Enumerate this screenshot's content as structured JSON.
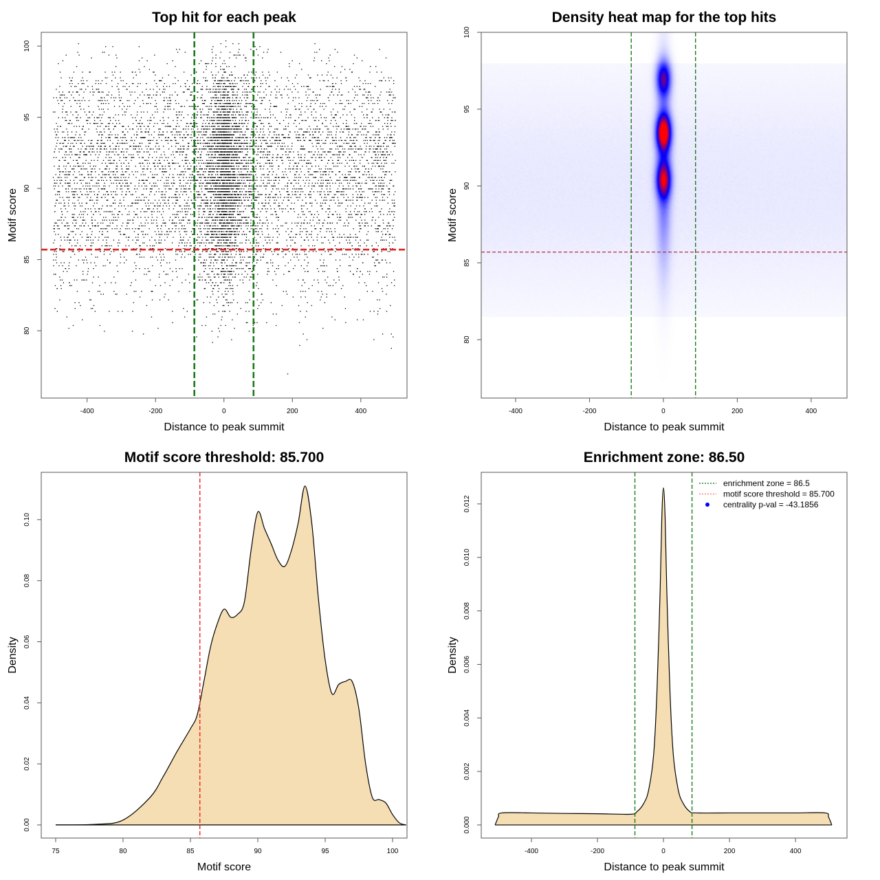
{
  "chart_data": [
    {
      "type": "scatter",
      "title": "Top hit for each peak",
      "xlabel": "Distance to peak summit",
      "ylabel": "Motif score",
      "xlim": [
        -534,
        535
      ],
      "ylim": [
        75.27,
        100.97
      ],
      "x_ticks": [
        "-400",
        "-200",
        "0",
        "200",
        "400"
      ],
      "y_ticks": [
        "80",
        "85",
        "90",
        "95",
        "100"
      ],
      "vlines": [
        -86.5,
        86.5
      ],
      "hline": 85.7,
      "points_summary": {
        "n": 9000,
        "x_range": [
          -500,
          500
        ],
        "central_fraction": 0.33,
        "central_scale": 30,
        "score_step": 0.2
      }
    },
    {
      "type": "heatmap",
      "title": "Density heat map for the top hits",
      "xlabel": "Distance to peak summit",
      "ylabel": "Motif score",
      "xlim": [
        -493,
        497
      ],
      "ylim": [
        76.2,
        100
      ],
      "x_ticks": [
        "-400",
        "-200",
        "0",
        "200",
        "400"
      ],
      "y_ticks": [
        "80",
        "85",
        "90",
        "95",
        "100"
      ],
      "vlines": [
        -87,
        87
      ],
      "hline": 85.7,
      "density_peaks": [
        {
          "x": 0,
          "y": 97.0,
          "level": 0.55
        },
        {
          "x": 0,
          "y": 93.5,
          "level": 0.9
        },
        {
          "x": 0,
          "y": 90.4,
          "level": 0.65
        }
      ],
      "colors": [
        "#ffffff",
        "#0000ff",
        "#ff0000"
      ]
    },
    {
      "type": "area",
      "title": "Motif score threshold: 85.700",
      "xlabel": "Motif score",
      "ylabel": "Density",
      "xlim": [
        73.93,
        101.07
      ],
      "ylim": [
        -0.0043,
        0.1155
      ],
      "x_ticks": [
        "75",
        "80",
        "85",
        "90",
        "95",
        "100"
      ],
      "y_ticks": [
        "0.00",
        "0.02",
        "0.04",
        "0.06",
        "0.08",
        "0.10"
      ],
      "vlines": [
        85.7
      ],
      "x": [
        75,
        78,
        80,
        82,
        83,
        84,
        85,
        85.5,
        86,
        86.5,
        87,
        87.5,
        88,
        88.5,
        89,
        89.5,
        90,
        90.5,
        91,
        91.5,
        92,
        92.5,
        93,
        93.5,
        94,
        94.5,
        95,
        95.5,
        96,
        96.5,
        97,
        97.5,
        98,
        98.5,
        99,
        99.5,
        100,
        100.5,
        101
      ],
      "y": [
        0,
        0.0002,
        0.0016,
        0.009,
        0.016,
        0.024,
        0.0315,
        0.036,
        0.047,
        0.0585,
        0.066,
        0.0707,
        0.068,
        0.069,
        0.073,
        0.09,
        0.1025,
        0.097,
        0.092,
        0.0867,
        0.0847,
        0.09,
        0.099,
        0.111,
        0.099,
        0.074,
        0.054,
        0.043,
        0.046,
        0.047,
        0.047,
        0.038,
        0.02,
        0.009,
        0.0083,
        0.0072,
        0.0034,
        0.0007,
        0
      ],
      "fill": "#f5deb3"
    },
    {
      "type": "area",
      "title": "Enrichment zone: 86.50",
      "xlabel": "Distance to peak summit",
      "ylabel": "Density",
      "xlim": [
        -552,
        556
      ],
      "ylim": [
        -0.00049,
        0.01318
      ],
      "x_ticks": [
        "-400",
        "-200",
        "0",
        "200",
        "400"
      ],
      "y_ticks": [
        "0.000",
        "0.002",
        "0.004",
        "0.006",
        "0.008",
        "0.010",
        "0.012"
      ],
      "vlines": [
        -86.5,
        86.5
      ],
      "x": [
        -510,
        -500,
        -490,
        -400,
        -300,
        -200,
        -100,
        -80,
        -60,
        -45,
        -30,
        -20,
        -10,
        -5,
        0,
        5,
        10,
        20,
        30,
        45,
        60,
        80,
        100,
        200,
        300,
        400,
        490,
        500,
        510
      ],
      "y": [
        0,
        0.0003,
        0.00045,
        0.00045,
        0.00043,
        0.00042,
        0.0004,
        0.0005,
        0.0008,
        0.0013,
        0.0026,
        0.0049,
        0.0088,
        0.0115,
        0.0126,
        0.0115,
        0.0088,
        0.0049,
        0.0026,
        0.0013,
        0.0008,
        0.0005,
        0.00045,
        0.00045,
        0.00045,
        0.00045,
        0.00045,
        0.0003,
        0
      ],
      "fill": "#f5deb3",
      "legend": [
        {
          "label": "enrichment zone = 86.5",
          "style": "dotted-line",
          "color": "#006400"
        },
        {
          "label": "motif score threshold = 85.700",
          "style": "dotted-line",
          "color": "#ff6060"
        },
        {
          "label": "centrality p-val = -43.1856",
          "style": "dot",
          "color": "#0000ff"
        }
      ]
    }
  ]
}
